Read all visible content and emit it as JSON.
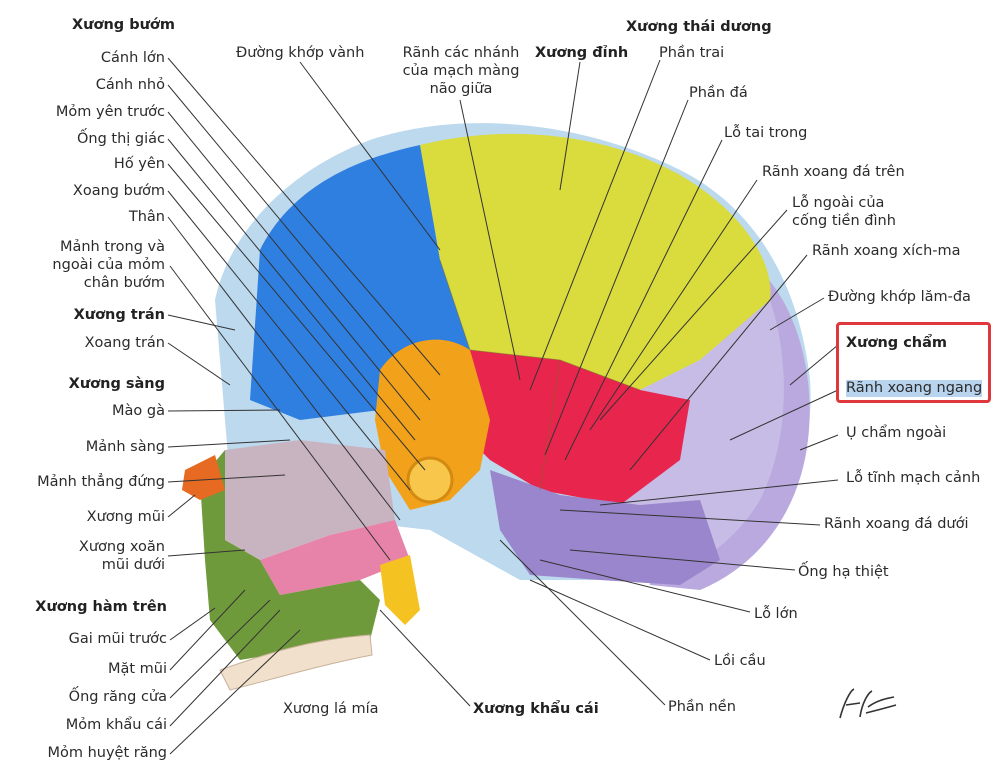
{
  "left": {
    "xuong_buom": "Xương bướm",
    "canh_lon": "Cánh lớn",
    "canh_nho": "Cánh nhỏ",
    "mom_yen_truoc": "Mỏm yên trước",
    "ong_thi_giac": "Ống thị giác",
    "ho_yen": "Hố yên",
    "xoang_buom": "Xoang bướm",
    "than": "Thân",
    "manh_trong_1": "Mảnh trong và",
    "manh_trong_2": "ngoài của mỏm",
    "manh_trong_3": "chân bướm",
    "xuong_tran": "Xương trán",
    "xoang_tran": "Xoang trán",
    "xuong_sang": "Xương sàng",
    "mao_ga": "Mào gà",
    "manh_sang": "Mảnh sàng",
    "manh_thang_dung": "Mảnh thẳng đứng",
    "xuong_mui": "Xương mũi",
    "xuong_xoan_1": "Xương xoăn",
    "xuong_xoan_2": "mũi dưới",
    "xuong_ham_tren": "Xương hàm trên",
    "gai_mui_truoc": "Gai mũi trước",
    "mat_mui": "Mặt mũi",
    "ong_rang_cua": "Ống răng cửa",
    "mom_khau_cai": "Mỏm khẩu cái",
    "mom_huyet_rang": "Mỏm huyệt răng"
  },
  "top": {
    "duong_khop_vanh": "Đường khớp vành",
    "ranh_1": "Rãnh các nhánh",
    "ranh_2": "của mạch màng",
    "ranh_3": "não giữa",
    "xuong_dinh": "Xương đỉnh",
    "xuong_thai_duong": "Xương thái dương"
  },
  "right": {
    "phan_trai": "Phần trai",
    "phan_da": "Phần đá",
    "lo_tai_trong": "Lỗ tai trong",
    "ranh_xoang_da_tren": "Rãnh xoang đá trên",
    "lo_ngoai_1": "Lỗ ngoài của",
    "lo_ngoai_2": "cống tiền đình",
    "ranh_xoang_xich_ma": "Rãnh xoang xích-ma",
    "duong_khop_lam_da": "Đường khớp lăm-đa",
    "xuong_cham": "Xương chẩm",
    "ranh_xoang_ngang": "Rãnh xoang ngang",
    "u_cham_ngoai": "Ụ chẩm ngoài",
    "lo_tinh_mach_canh": "Lỗ tĩnh mạch cảnh",
    "ranh_xoang_da_duoi": "Rãnh xoang đá dưới",
    "ong_ha_thiet": "Ống hạ thiệt",
    "lo_lon": "Lỗ lớn",
    "loi_cau": "Lồi cầu",
    "phan_nen": "Phần nền"
  },
  "bottom": {
    "xuong_la_mia": "Xương lá mía",
    "xuong_khau_cai": "Xương khẩu cái"
  },
  "colors": {
    "parietal": "#d9dc3c",
    "frontal": "#2f7fe0",
    "temporal": "#e8264d",
    "occipital": "#a99ad6",
    "sphenoid": "#f2a11a",
    "ethmoid": "#c8b4c0",
    "maxilla": "#6f9a3c",
    "vomer": "#e782a8",
    "highlight": "#e0373c"
  }
}
